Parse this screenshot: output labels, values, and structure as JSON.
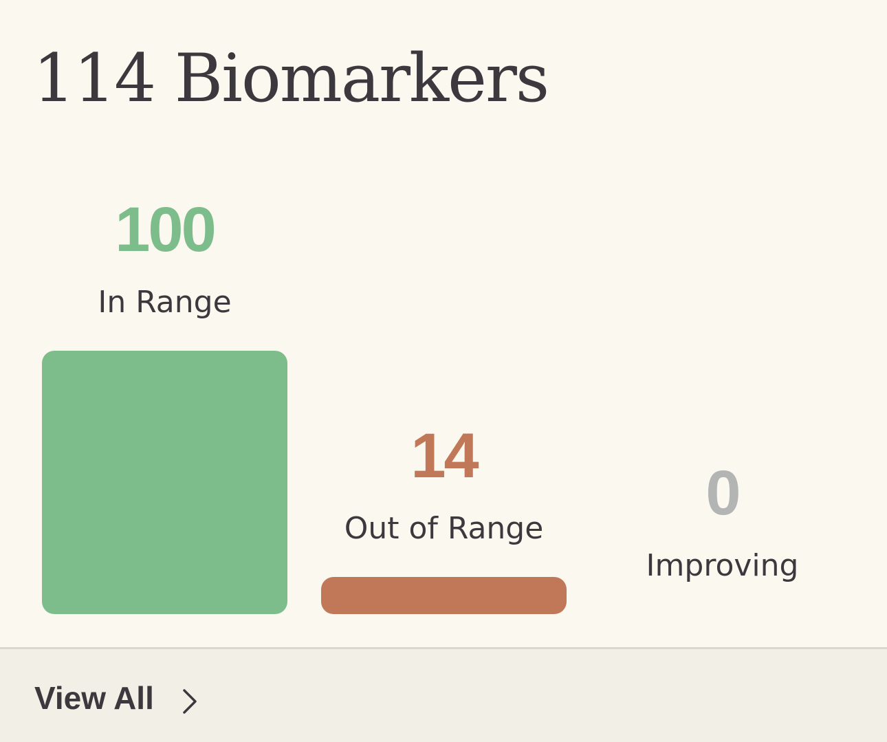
{
  "header": {
    "title": "114 Biomarkers"
  },
  "chart_data": {
    "type": "bar",
    "categories": [
      "In Range",
      "Out of Range",
      "Improving"
    ],
    "values": [
      100,
      14,
      0
    ],
    "value_labels": [
      "100",
      "14",
      "0"
    ],
    "colors": [
      "#7dbd8b",
      "#c07858",
      "#b3b4b4"
    ]
  },
  "footer": {
    "link_label": "View All",
    "icon": "chevron-right-icon"
  }
}
